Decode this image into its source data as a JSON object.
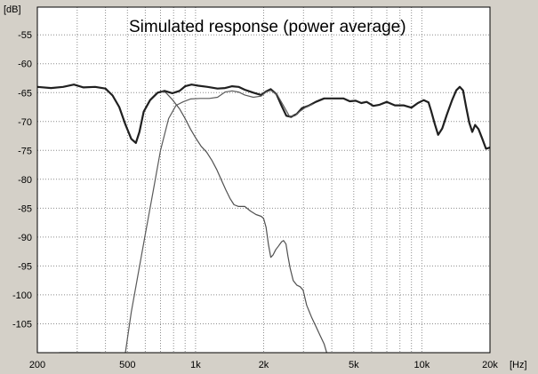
{
  "chart_data": {
    "type": "line",
    "title": "Simulated response (power average)",
    "xlabel": "[Hz]",
    "ylabel": "[dB]",
    "x_scale": "log",
    "xlim": [
      200,
      20000
    ],
    "ylim": [
      -110,
      -50
    ],
    "grid": true,
    "x_ticks": [
      {
        "value": 200,
        "label": "200"
      },
      {
        "value": 500,
        "label": "500"
      },
      {
        "value": 1000,
        "label": "1k"
      },
      {
        "value": 2000,
        "label": "2k"
      },
      {
        "value": 5000,
        "label": "5k"
      },
      {
        "value": 10000,
        "label": "10k"
      },
      {
        "value": 20000,
        "label": "20k"
      }
    ],
    "y_ticks": [
      {
        "value": -55,
        "label": "-55"
      },
      {
        "value": -60,
        "label": "-60"
      },
      {
        "value": -65,
        "label": "-65"
      },
      {
        "value": -70,
        "label": "-70"
      },
      {
        "value": -75,
        "label": "-75"
      },
      {
        "value": -80,
        "label": "-80"
      },
      {
        "value": -85,
        "label": "-85"
      },
      {
        "value": -90,
        "label": "-90"
      },
      {
        "value": -95,
        "label": "-95"
      },
      {
        "value": -100,
        "label": "-100"
      },
      {
        "value": -105,
        "label": "-105"
      }
    ],
    "series": [
      {
        "color": "#202020",
        "width": 2.2,
        "points": [
          [
            200,
            -64
          ],
          [
            230,
            -64.2
          ],
          [
            260,
            -64
          ],
          [
            290,
            -63.6
          ],
          [
            320,
            -64.1
          ],
          [
            360,
            -64
          ],
          [
            400,
            -64.3
          ],
          [
            430,
            -65.5
          ],
          [
            460,
            -67.5
          ],
          [
            490,
            -70.5
          ],
          [
            520,
            -73
          ],
          [
            545,
            -73.7
          ],
          [
            565,
            -71.8
          ],
          [
            590,
            -68.3
          ],
          [
            630,
            -66.3
          ],
          [
            680,
            -65
          ],
          [
            730,
            -64.7
          ],
          [
            790,
            -65.1
          ],
          [
            850,
            -64.7
          ],
          [
            900,
            -63.9
          ],
          [
            960,
            -63.6
          ],
          [
            1030,
            -63.8
          ],
          [
            1130,
            -64
          ],
          [
            1250,
            -64.3
          ],
          [
            1350,
            -64.2
          ],
          [
            1450,
            -63.9
          ],
          [
            1550,
            -64
          ],
          [
            1650,
            -64.5
          ],
          [
            1800,
            -65
          ],
          [
            1950,
            -65.4
          ],
          [
            2050,
            -64.8
          ],
          [
            2150,
            -64.4
          ],
          [
            2280,
            -65.3
          ],
          [
            2400,
            -67.3
          ],
          [
            2520,
            -69
          ],
          [
            2640,
            -69.2
          ],
          [
            2800,
            -68.7
          ],
          [
            2950,
            -67.7
          ],
          [
            3150,
            -67.3
          ],
          [
            3400,
            -66.6
          ],
          [
            3700,
            -66
          ],
          [
            4100,
            -66
          ],
          [
            4500,
            -66
          ],
          [
            4800,
            -66.5
          ],
          [
            5100,
            -66.4
          ],
          [
            5400,
            -66.8
          ],
          [
            5700,
            -66.6
          ],
          [
            6100,
            -67.3
          ],
          [
            6500,
            -67.1
          ],
          [
            7000,
            -66.6
          ],
          [
            7600,
            -67.2
          ],
          [
            8300,
            -67.2
          ],
          [
            9000,
            -67.6
          ],
          [
            9600,
            -66.8
          ],
          [
            10200,
            -66.3
          ],
          [
            10700,
            -66.7
          ],
          [
            11000,
            -68.2
          ],
          [
            11400,
            -70.4
          ],
          [
            11800,
            -72.3
          ],
          [
            12300,
            -71.2
          ],
          [
            12900,
            -68.8
          ],
          [
            13600,
            -66.3
          ],
          [
            14200,
            -64.6
          ],
          [
            14700,
            -64
          ],
          [
            15200,
            -64.6
          ],
          [
            15700,
            -67.5
          ],
          [
            16200,
            -70.2
          ],
          [
            16700,
            -71.8
          ],
          [
            17200,
            -70.6
          ],
          [
            17800,
            -71.3
          ],
          [
            18500,
            -73
          ],
          [
            19200,
            -74.7
          ],
          [
            20000,
            -74.5
          ]
        ]
      },
      {
        "color": "#5a5a5a",
        "width": 1.2,
        "points": [
          [
            490,
            -110
          ],
          [
            520,
            -103
          ],
          [
            560,
            -96
          ],
          [
            600,
            -89.5
          ],
          [
            650,
            -82
          ],
          [
            700,
            -75
          ],
          [
            760,
            -69.5
          ],
          [
            820,
            -67.2
          ],
          [
            880,
            -66.6
          ],
          [
            950,
            -66.1
          ],
          [
            1050,
            -66
          ],
          [
            1150,
            -66
          ],
          [
            1250,
            -65.8
          ],
          [
            1350,
            -64.9
          ],
          [
            1450,
            -64.7
          ],
          [
            1550,
            -64.9
          ],
          [
            1650,
            -65.4
          ],
          [
            1800,
            -65.8
          ],
          [
            1950,
            -65.6
          ],
          [
            2050,
            -64.9
          ],
          [
            2150,
            -64.6
          ],
          [
            2300,
            -65.4
          ],
          [
            2450,
            -67.3
          ],
          [
            2600,
            -69.1
          ],
          [
            2750,
            -69
          ],
          [
            2900,
            -68.2
          ],
          [
            3050,
            -67.6
          ],
          [
            3300,
            -67
          ]
        ]
      },
      {
        "color": "#5a5a5a",
        "width": 1.2,
        "points": [
          [
            250,
            -110
          ],
          [
            270,
            -110
          ],
          [
            300,
            -110
          ],
          [
            330,
            -110
          ],
          [
            360,
            -110
          ],
          [
            380,
            -110
          ]
        ]
      },
      {
        "color": "#505050",
        "width": 1.2,
        "points": [
          [
            700,
            -64.7
          ],
          [
            740,
            -65
          ],
          [
            790,
            -66.2
          ],
          [
            850,
            -67.8
          ],
          [
            900,
            -69.5
          ],
          [
            950,
            -71.3
          ],
          [
            1000,
            -72.8
          ],
          [
            1060,
            -74.3
          ],
          [
            1120,
            -75.3
          ],
          [
            1180,
            -76.7
          ],
          [
            1240,
            -78.3
          ],
          [
            1300,
            -80.1
          ],
          [
            1360,
            -81.8
          ],
          [
            1420,
            -83.3
          ],
          [
            1480,
            -84.4
          ],
          [
            1550,
            -84.7
          ],
          [
            1650,
            -84.7
          ],
          [
            1750,
            -85.5
          ],
          [
            1850,
            -86.1
          ],
          [
            1950,
            -86.4
          ],
          [
            2000,
            -86.8
          ],
          [
            2050,
            -88.3
          ],
          [
            2100,
            -91.3
          ],
          [
            2150,
            -93.5
          ],
          [
            2200,
            -93.1
          ],
          [
            2260,
            -92.2
          ],
          [
            2330,
            -91.5
          ],
          [
            2400,
            -90.8
          ],
          [
            2450,
            -90.6
          ],
          [
            2510,
            -91.2
          ],
          [
            2560,
            -93.3
          ],
          [
            2620,
            -95.4
          ],
          [
            2700,
            -97.5
          ],
          [
            2800,
            -98.3
          ],
          [
            2900,
            -98.6
          ],
          [
            2990,
            -99.2
          ],
          [
            3100,
            -101.8
          ],
          [
            3250,
            -103.8
          ],
          [
            3400,
            -105.4
          ],
          [
            3550,
            -107
          ],
          [
            3700,
            -108.5
          ],
          [
            3800,
            -110
          ]
        ]
      }
    ]
  }
}
